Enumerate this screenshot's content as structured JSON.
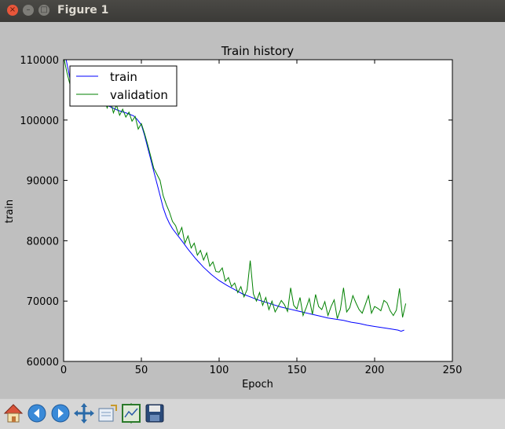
{
  "window": {
    "title": "Figure 1",
    "controls": {
      "close": "×",
      "minimize": "–",
      "maximize": "□"
    }
  },
  "toolbar": {
    "buttons": [
      {
        "name": "home-button",
        "icon": "home-icon"
      },
      {
        "name": "back-button",
        "icon": "arrow-left-icon"
      },
      {
        "name": "forward-button",
        "icon": "arrow-right-icon"
      },
      {
        "name": "pan-button",
        "icon": "move-arrows-icon"
      },
      {
        "name": "zoom-button",
        "icon": "zoom-rect-icon"
      },
      {
        "name": "subplots-button",
        "icon": "configure-subplots-icon"
      },
      {
        "name": "save-button",
        "icon": "floppy-disk-icon"
      }
    ]
  },
  "chart_data": {
    "type": "line",
    "title": "Train history",
    "xlabel": "Epoch",
    "ylabel": "train",
    "xlim": [
      0,
      250
    ],
    "ylim": [
      60000,
      110000
    ],
    "xticks": [
      0,
      50,
      100,
      150,
      200,
      250
    ],
    "yticks": [
      60000,
      70000,
      80000,
      90000,
      100000,
      110000
    ],
    "grid": false,
    "legend": "upper-left",
    "series": [
      {
        "name": "train",
        "color": "#0000ff",
        "x": [
          0,
          2,
          4,
          6,
          8,
          10,
          12,
          15,
          20,
          25,
          30,
          35,
          40,
          42,
          45,
          47,
          50,
          52,
          54,
          56,
          58,
          60,
          62,
          64,
          66,
          68,
          70,
          73,
          76,
          80,
          85,
          90,
          95,
          100,
          105,
          110,
          115,
          120,
          125,
          130,
          135,
          140,
          145,
          150,
          155,
          160,
          165,
          170,
          175,
          180,
          185,
          190,
          195,
          200,
          205,
          210,
          215,
          217,
          219
        ],
        "values": [
          112000,
          109500,
          107000,
          105500,
          104800,
          104500,
          104200,
          103800,
          103300,
          102800,
          102200,
          101600,
          101200,
          101000,
          100700,
          100200,
          99200,
          97500,
          95500,
          93500,
          91500,
          89500,
          87500,
          85500,
          84000,
          82900,
          82000,
          81000,
          80000,
          78600,
          77000,
          75600,
          74400,
          73400,
          72600,
          71900,
          71200,
          70700,
          70200,
          69800,
          69400,
          69000,
          68700,
          68400,
          68100,
          67800,
          67500,
          67200,
          67000,
          66800,
          66500,
          66300,
          66000,
          65800,
          65600,
          65400,
          65200,
          65000,
          65200
        ]
      },
      {
        "name": "validation",
        "color": "#008000",
        "x": [
          0,
          2,
          4,
          6,
          8,
          10,
          12,
          14,
          16,
          18,
          20,
          22,
          24,
          26,
          28,
          30,
          32,
          34,
          36,
          38,
          40,
          42,
          44,
          46,
          48,
          50,
          52,
          54,
          56,
          58,
          60,
          62,
          64,
          66,
          68,
          70,
          72,
          74,
          76,
          78,
          80,
          82,
          84,
          86,
          88,
          90,
          92,
          94,
          96,
          98,
          100,
          102,
          104,
          106,
          108,
          110,
          112,
          114,
          116,
          118,
          120,
          122,
          124,
          126,
          128,
          130,
          132,
          134,
          136,
          138,
          140,
          142,
          144,
          146,
          148,
          150,
          152,
          154,
          156,
          158,
          160,
          162,
          164,
          166,
          168,
          170,
          172,
          174,
          176,
          178,
          180,
          182,
          184,
          186,
          188,
          190,
          192,
          194,
          196,
          198,
          200,
          202,
          204,
          206,
          208,
          210,
          212,
          214,
          216,
          218,
          220
        ],
        "values": [
          110500,
          108000,
          106000,
          107500,
          105000,
          106200,
          104000,
          105500,
          103500,
          104800,
          102800,
          104000,
          102500,
          103800,
          102000,
          103300,
          101200,
          102500,
          100800,
          101800,
          100500,
          101300,
          99800,
          100600,
          98500,
          99400,
          97800,
          96000,
          94000,
          92000,
          91000,
          90000,
          87500,
          86000,
          84800,
          83200,
          82500,
          81000,
          82200,
          79600,
          80800,
          78800,
          79600,
          77600,
          78400,
          76800,
          78000,
          75800,
          76500,
          74900,
          74800,
          75500,
          73300,
          73900,
          72400,
          73000,
          71400,
          72400,
          70700,
          71900,
          76700,
          71200,
          70000,
          71400,
          69300,
          70600,
          68600,
          70000,
          68200,
          69100,
          70100,
          69400,
          68300,
          72200,
          69300,
          68700,
          70600,
          67600,
          68900,
          70400,
          67800,
          71100,
          69100,
          68600,
          69900,
          67600,
          69100,
          70200,
          67100,
          68600,
          72200,
          68200,
          68900,
          70900,
          69700,
          68600,
          68000,
          69400,
          70900,
          68000,
          69100,
          68800,
          68400,
          70100,
          69700,
          68400,
          67600,
          68500,
          72100,
          67300,
          69600
        ]
      }
    ]
  }
}
